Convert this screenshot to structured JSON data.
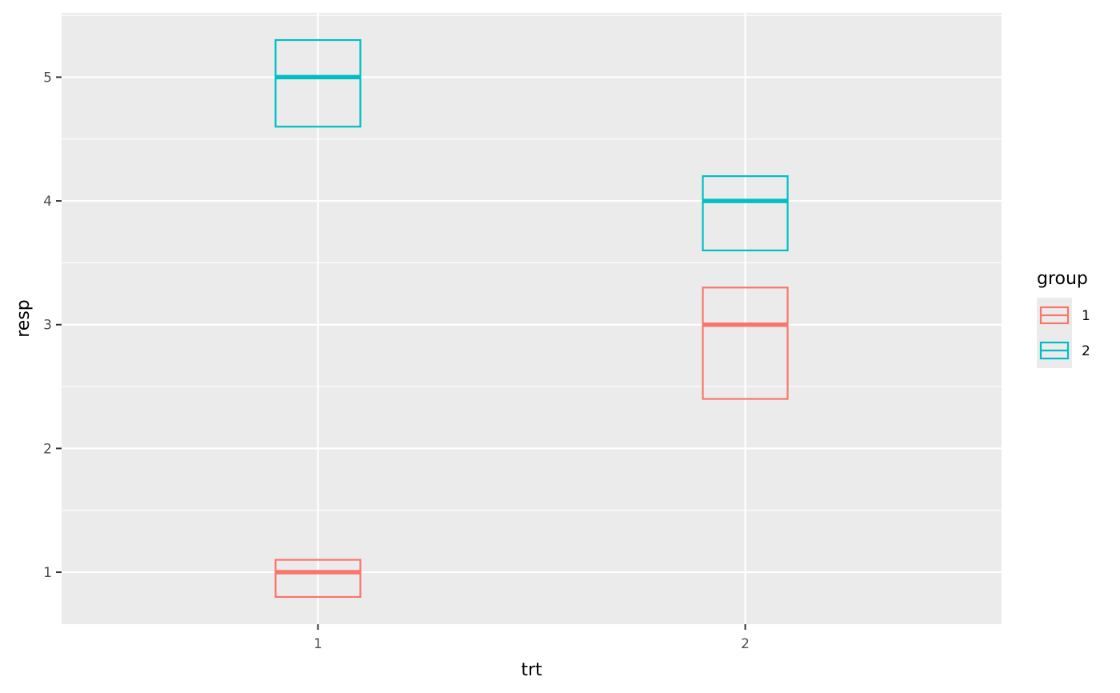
{
  "chart_data": {
    "type": "crossbar",
    "xlabel": "trt",
    "ylabel": "resp",
    "categories": [
      "1",
      "2"
    ],
    "ylim": [
      0.58,
      5.52
    ],
    "y_ticks": [
      1,
      2,
      3,
      4,
      5
    ],
    "grid": true,
    "legend": {
      "title": "group",
      "placement": "right"
    },
    "series": [
      {
        "name": "1",
        "color": "#F8766D",
        "points": [
          {
            "x": "1",
            "y": 1,
            "lower": 0.8,
            "upper": 1.1
          },
          {
            "x": "2",
            "y": 3,
            "lower": 2.4,
            "upper": 3.3
          }
        ]
      },
      {
        "name": "2",
        "color": "#00BFC4",
        "points": [
          {
            "x": "1",
            "y": 5,
            "lower": 4.6,
            "upper": 5.3
          },
          {
            "x": "2",
            "y": 4,
            "lower": 3.6,
            "upper": 4.2
          }
        ]
      }
    ]
  },
  "colors": {
    "panel_background": "#EBEBEB",
    "grid_line": "#FFFFFF",
    "tick_text": "#4D4D4D"
  }
}
